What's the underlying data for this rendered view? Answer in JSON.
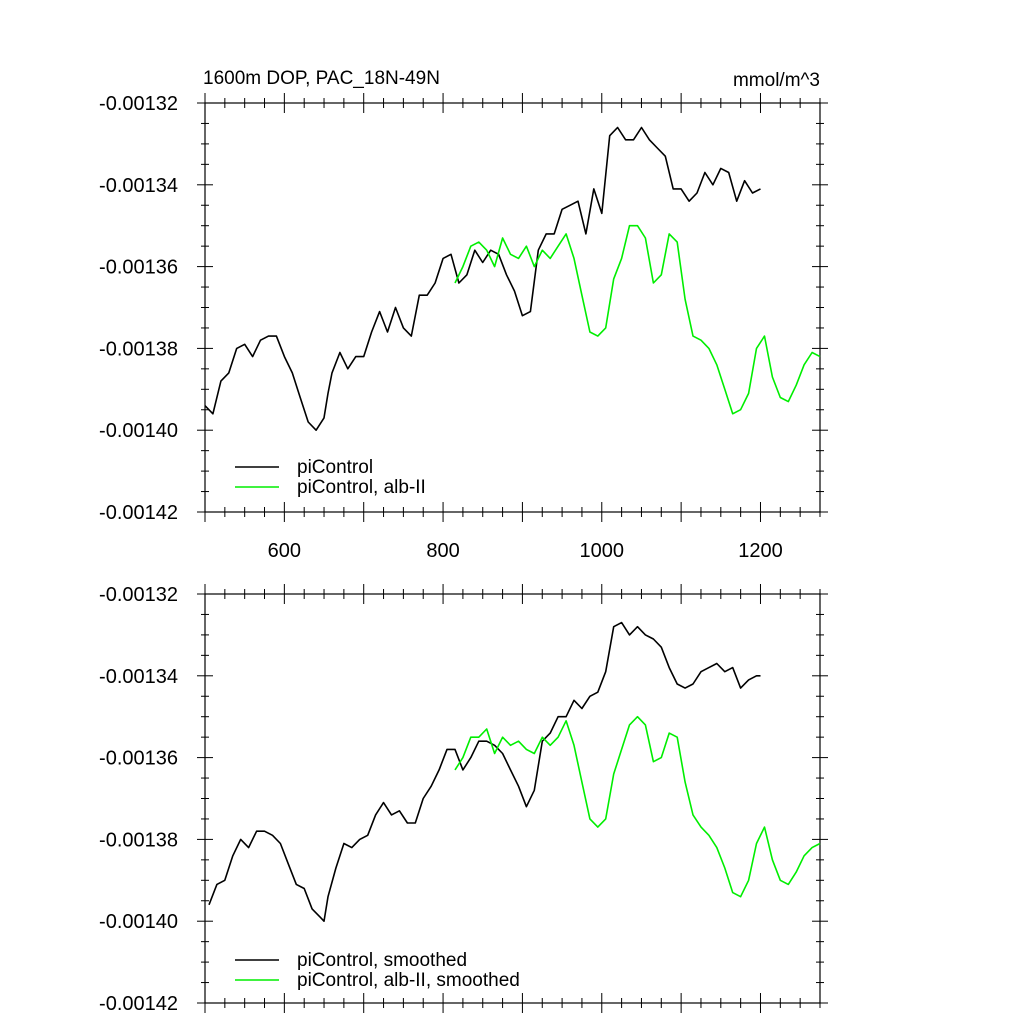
{
  "chart_data": [
    {
      "type": "line",
      "title": "1600m DOP, PAC_18N-49N",
      "units": "mmol/m^3",
      "xlim": [
        500,
        1275
      ],
      "ylim": [
        -0.00142,
        -0.00132
      ],
      "x_ticks": [
        600,
        800,
        1000,
        1200
      ],
      "x_tick_labels": [
        "600",
        "800",
        "1000",
        "1200"
      ],
      "y_ticks": [
        -0.00132,
        -0.00134,
        -0.00136,
        -0.00138,
        -0.0014,
        -0.00142
      ],
      "y_tick_labels": [
        "-0.00132",
        "-0.00134",
        "-0.00136",
        "-0.00138",
        "-0.00140",
        "-0.00142"
      ],
      "grid": false,
      "legend_position": "bottom-left",
      "series": [
        {
          "name": "piControl",
          "color": "#000000",
          "x": [
            500,
            510,
            520,
            530,
            540,
            550,
            560,
            570,
            580,
            590,
            600,
            610,
            620,
            630,
            640,
            650,
            655,
            660,
            670,
            680,
            690,
            700,
            710,
            720,
            730,
            740,
            750,
            760,
            770,
            780,
            790,
            800,
            810,
            820,
            830,
            840,
            850,
            860,
            870,
            880,
            890,
            900,
            910,
            920,
            930,
            940,
            950,
            960,
            970,
            980,
            990,
            1000,
            1010,
            1020,
            1030,
            1040,
            1050,
            1060,
            1070,
            1080,
            1090,
            1100,
            1110,
            1120,
            1130,
            1140,
            1150,
            1160,
            1170,
            1180,
            1190,
            1200
          ],
          "values": [
            -0.001394,
            -0.001396,
            -0.001388,
            -0.001386,
            -0.00138,
            -0.001379,
            -0.001382,
            -0.001378,
            -0.001377,
            -0.001377,
            -0.001382,
            -0.001386,
            -0.001392,
            -0.001398,
            -0.0014,
            -0.001397,
            -0.001391,
            -0.001386,
            -0.001381,
            -0.001385,
            -0.001382,
            -0.001382,
            -0.001376,
            -0.001371,
            -0.001376,
            -0.00137,
            -0.001375,
            -0.001377,
            -0.001367,
            -0.001367,
            -0.001364,
            -0.001358,
            -0.001357,
            -0.001364,
            -0.001362,
            -0.001356,
            -0.001359,
            -0.001356,
            -0.001357,
            -0.001362,
            -0.001366,
            -0.001372,
            -0.001371,
            -0.001356,
            -0.001352,
            -0.001352,
            -0.001346,
            -0.001345,
            -0.001344,
            -0.001352,
            -0.001341,
            -0.001347,
            -0.001328,
            -0.001326,
            -0.001329,
            -0.001329,
            -0.001326,
            -0.001329,
            -0.001331,
            -0.001333,
            -0.001341,
            -0.001341,
            -0.001344,
            -0.001342,
            -0.001337,
            -0.00134,
            -0.001336,
            -0.001337,
            -0.001344,
            -0.001339,
            -0.001342,
            -0.001341
          ]
        },
        {
          "name": "piControl, alb-II",
          "color": "#00ee00",
          "x": [
            815,
            825,
            835,
            845,
            855,
            865,
            875,
            885,
            895,
            905,
            915,
            925,
            935,
            945,
            955,
            965,
            975,
            985,
            995,
            1005,
            1015,
            1025,
            1035,
            1045,
            1055,
            1065,
            1075,
            1085,
            1095,
            1105,
            1115,
            1125,
            1135,
            1145,
            1155,
            1165,
            1175,
            1185,
            1195,
            1205,
            1215,
            1225,
            1235,
            1245,
            1255,
            1265,
            1275
          ],
          "values": [
            -0.001364,
            -0.00136,
            -0.001355,
            -0.001354,
            -0.001356,
            -0.00136,
            -0.001353,
            -0.001357,
            -0.001358,
            -0.001355,
            -0.00136,
            -0.001356,
            -0.001358,
            -0.001355,
            -0.001352,
            -0.001358,
            -0.001367,
            -0.001376,
            -0.001377,
            -0.001375,
            -0.001363,
            -0.001358,
            -0.00135,
            -0.00135,
            -0.001353,
            -0.001364,
            -0.001362,
            -0.001352,
            -0.001354,
            -0.001368,
            -0.001377,
            -0.001378,
            -0.00138,
            -0.001384,
            -0.00139,
            -0.001396,
            -0.001395,
            -0.001391,
            -0.00138,
            -0.001377,
            -0.001387,
            -0.001392,
            -0.001393,
            -0.001389,
            -0.001384,
            -0.001381,
            -0.001382
          ]
        }
      ]
    },
    {
      "type": "line",
      "xlim": [
        500,
        1275
      ],
      "ylim": [
        -0.00142,
        -0.00132
      ],
      "x_ticks": [
        600,
        800,
        1000,
        1200
      ],
      "y_ticks": [
        -0.00132,
        -0.00134,
        -0.00136,
        -0.00138,
        -0.0014,
        -0.00142
      ],
      "y_tick_labels": [
        "-0.00132",
        "-0.00134",
        "-0.00136",
        "-0.00138",
        "-0.00140",
        "-0.00142"
      ],
      "grid": false,
      "legend_position": "bottom-left",
      "series": [
        {
          "name": "piControl, smoothed",
          "color": "#000000",
          "x": [
            505,
            515,
            525,
            535,
            545,
            555,
            565,
            575,
            585,
            595,
            605,
            615,
            625,
            635,
            645,
            650,
            655,
            665,
            675,
            685,
            695,
            705,
            715,
            725,
            735,
            745,
            755,
            765,
            775,
            785,
            795,
            805,
            815,
            825,
            835,
            845,
            855,
            865,
            875,
            885,
            895,
            905,
            915,
            925,
            935,
            945,
            955,
            965,
            975,
            985,
            995,
            1005,
            1015,
            1025,
            1035,
            1045,
            1055,
            1065,
            1075,
            1085,
            1095,
            1105,
            1115,
            1125,
            1135,
            1145,
            1155,
            1165,
            1175,
            1185,
            1195,
            1200
          ],
          "values": [
            -0.001396,
            -0.001391,
            -0.00139,
            -0.001384,
            -0.00138,
            -0.001382,
            -0.001378,
            -0.001378,
            -0.001379,
            -0.001381,
            -0.001386,
            -0.001391,
            -0.001392,
            -0.001397,
            -0.001399,
            -0.0014,
            -0.001394,
            -0.001387,
            -0.001381,
            -0.001382,
            -0.00138,
            -0.001379,
            -0.001374,
            -0.001371,
            -0.001374,
            -0.001373,
            -0.001376,
            -0.001376,
            -0.00137,
            -0.001367,
            -0.001363,
            -0.001358,
            -0.001358,
            -0.001363,
            -0.00136,
            -0.001356,
            -0.001356,
            -0.001357,
            -0.001359,
            -0.001363,
            -0.001367,
            -0.001372,
            -0.001368,
            -0.001356,
            -0.001354,
            -0.00135,
            -0.00135,
            -0.001346,
            -0.001348,
            -0.001345,
            -0.001344,
            -0.001339,
            -0.001328,
            -0.001327,
            -0.00133,
            -0.001328,
            -0.00133,
            -0.001331,
            -0.001333,
            -0.001338,
            -0.001342,
            -0.001343,
            -0.001342,
            -0.001339,
            -0.001338,
            -0.001337,
            -0.001339,
            -0.001338,
            -0.001343,
            -0.001341,
            -0.00134,
            -0.00134
          ]
        },
        {
          "name": "piControl, alb-II, smoothed",
          "color": "#00ee00",
          "x": [
            815,
            825,
            835,
            845,
            855,
            865,
            875,
            885,
            895,
            905,
            915,
            925,
            935,
            945,
            955,
            965,
            975,
            985,
            995,
            1005,
            1015,
            1025,
            1035,
            1045,
            1055,
            1065,
            1075,
            1085,
            1095,
            1105,
            1115,
            1125,
            1135,
            1145,
            1155,
            1165,
            1175,
            1185,
            1195,
            1205,
            1215,
            1225,
            1235,
            1245,
            1255,
            1265,
            1275
          ],
          "values": [
            -0.001363,
            -0.00136,
            -0.001355,
            -0.001355,
            -0.001353,
            -0.001359,
            -0.001355,
            -0.001357,
            -0.001356,
            -0.001358,
            -0.001359,
            -0.001355,
            -0.001357,
            -0.001355,
            -0.001351,
            -0.001357,
            -0.001366,
            -0.001375,
            -0.001377,
            -0.001375,
            -0.001364,
            -0.001358,
            -0.001352,
            -0.00135,
            -0.001352,
            -0.001361,
            -0.00136,
            -0.001354,
            -0.001355,
            -0.001366,
            -0.001374,
            -0.001377,
            -0.001379,
            -0.001382,
            -0.001387,
            -0.001393,
            -0.001394,
            -0.00139,
            -0.001381,
            -0.001377,
            -0.001385,
            -0.00139,
            -0.001391,
            -0.001388,
            -0.001384,
            -0.001382,
            -0.001381
          ]
        }
      ]
    }
  ]
}
